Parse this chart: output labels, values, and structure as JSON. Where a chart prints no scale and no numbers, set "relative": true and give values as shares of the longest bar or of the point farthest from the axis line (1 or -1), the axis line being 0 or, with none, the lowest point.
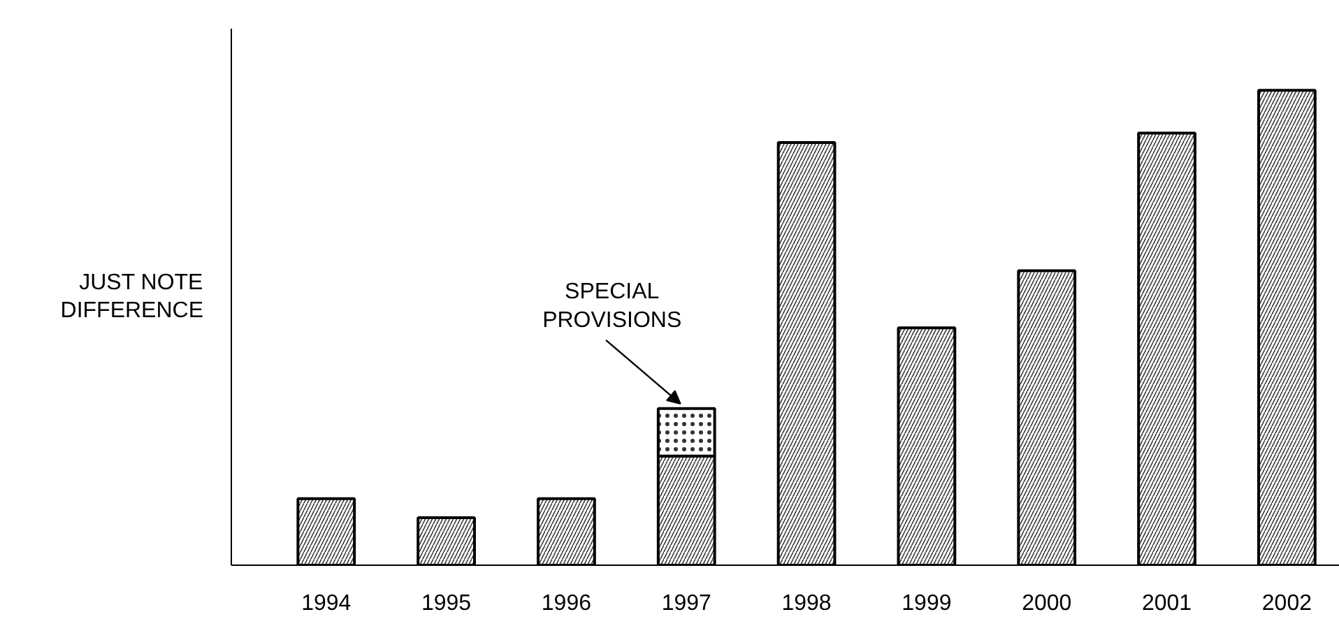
{
  "chart_data": {
    "type": "bar",
    "relative": true,
    "stacked": true,
    "ylabel": "JUST NOTE\nDIFFERENCE",
    "categories": [
      "1994",
      "1995",
      "1996",
      "1997",
      "1998",
      "1999",
      "2000",
      "2001",
      "2002"
    ],
    "series": [
      {
        "color": "#ffffff",
        "values": [
          0.14,
          0.1,
          0.14,
          0.23,
          0.89,
          0.5,
          0.62,
          0.91,
          1.0
        ]
      },
      {
        "color": "#ffffff",
        "values": [
          0,
          0,
          0,
          0.1,
          0,
          0,
          0,
          0,
          0
        ]
      }
    ],
    "annotations": [
      {
        "text": "SPECIAL\nPROVISIONS",
        "x": "1997",
        "y": 0.33
      }
    ],
    "grid": false
  }
}
